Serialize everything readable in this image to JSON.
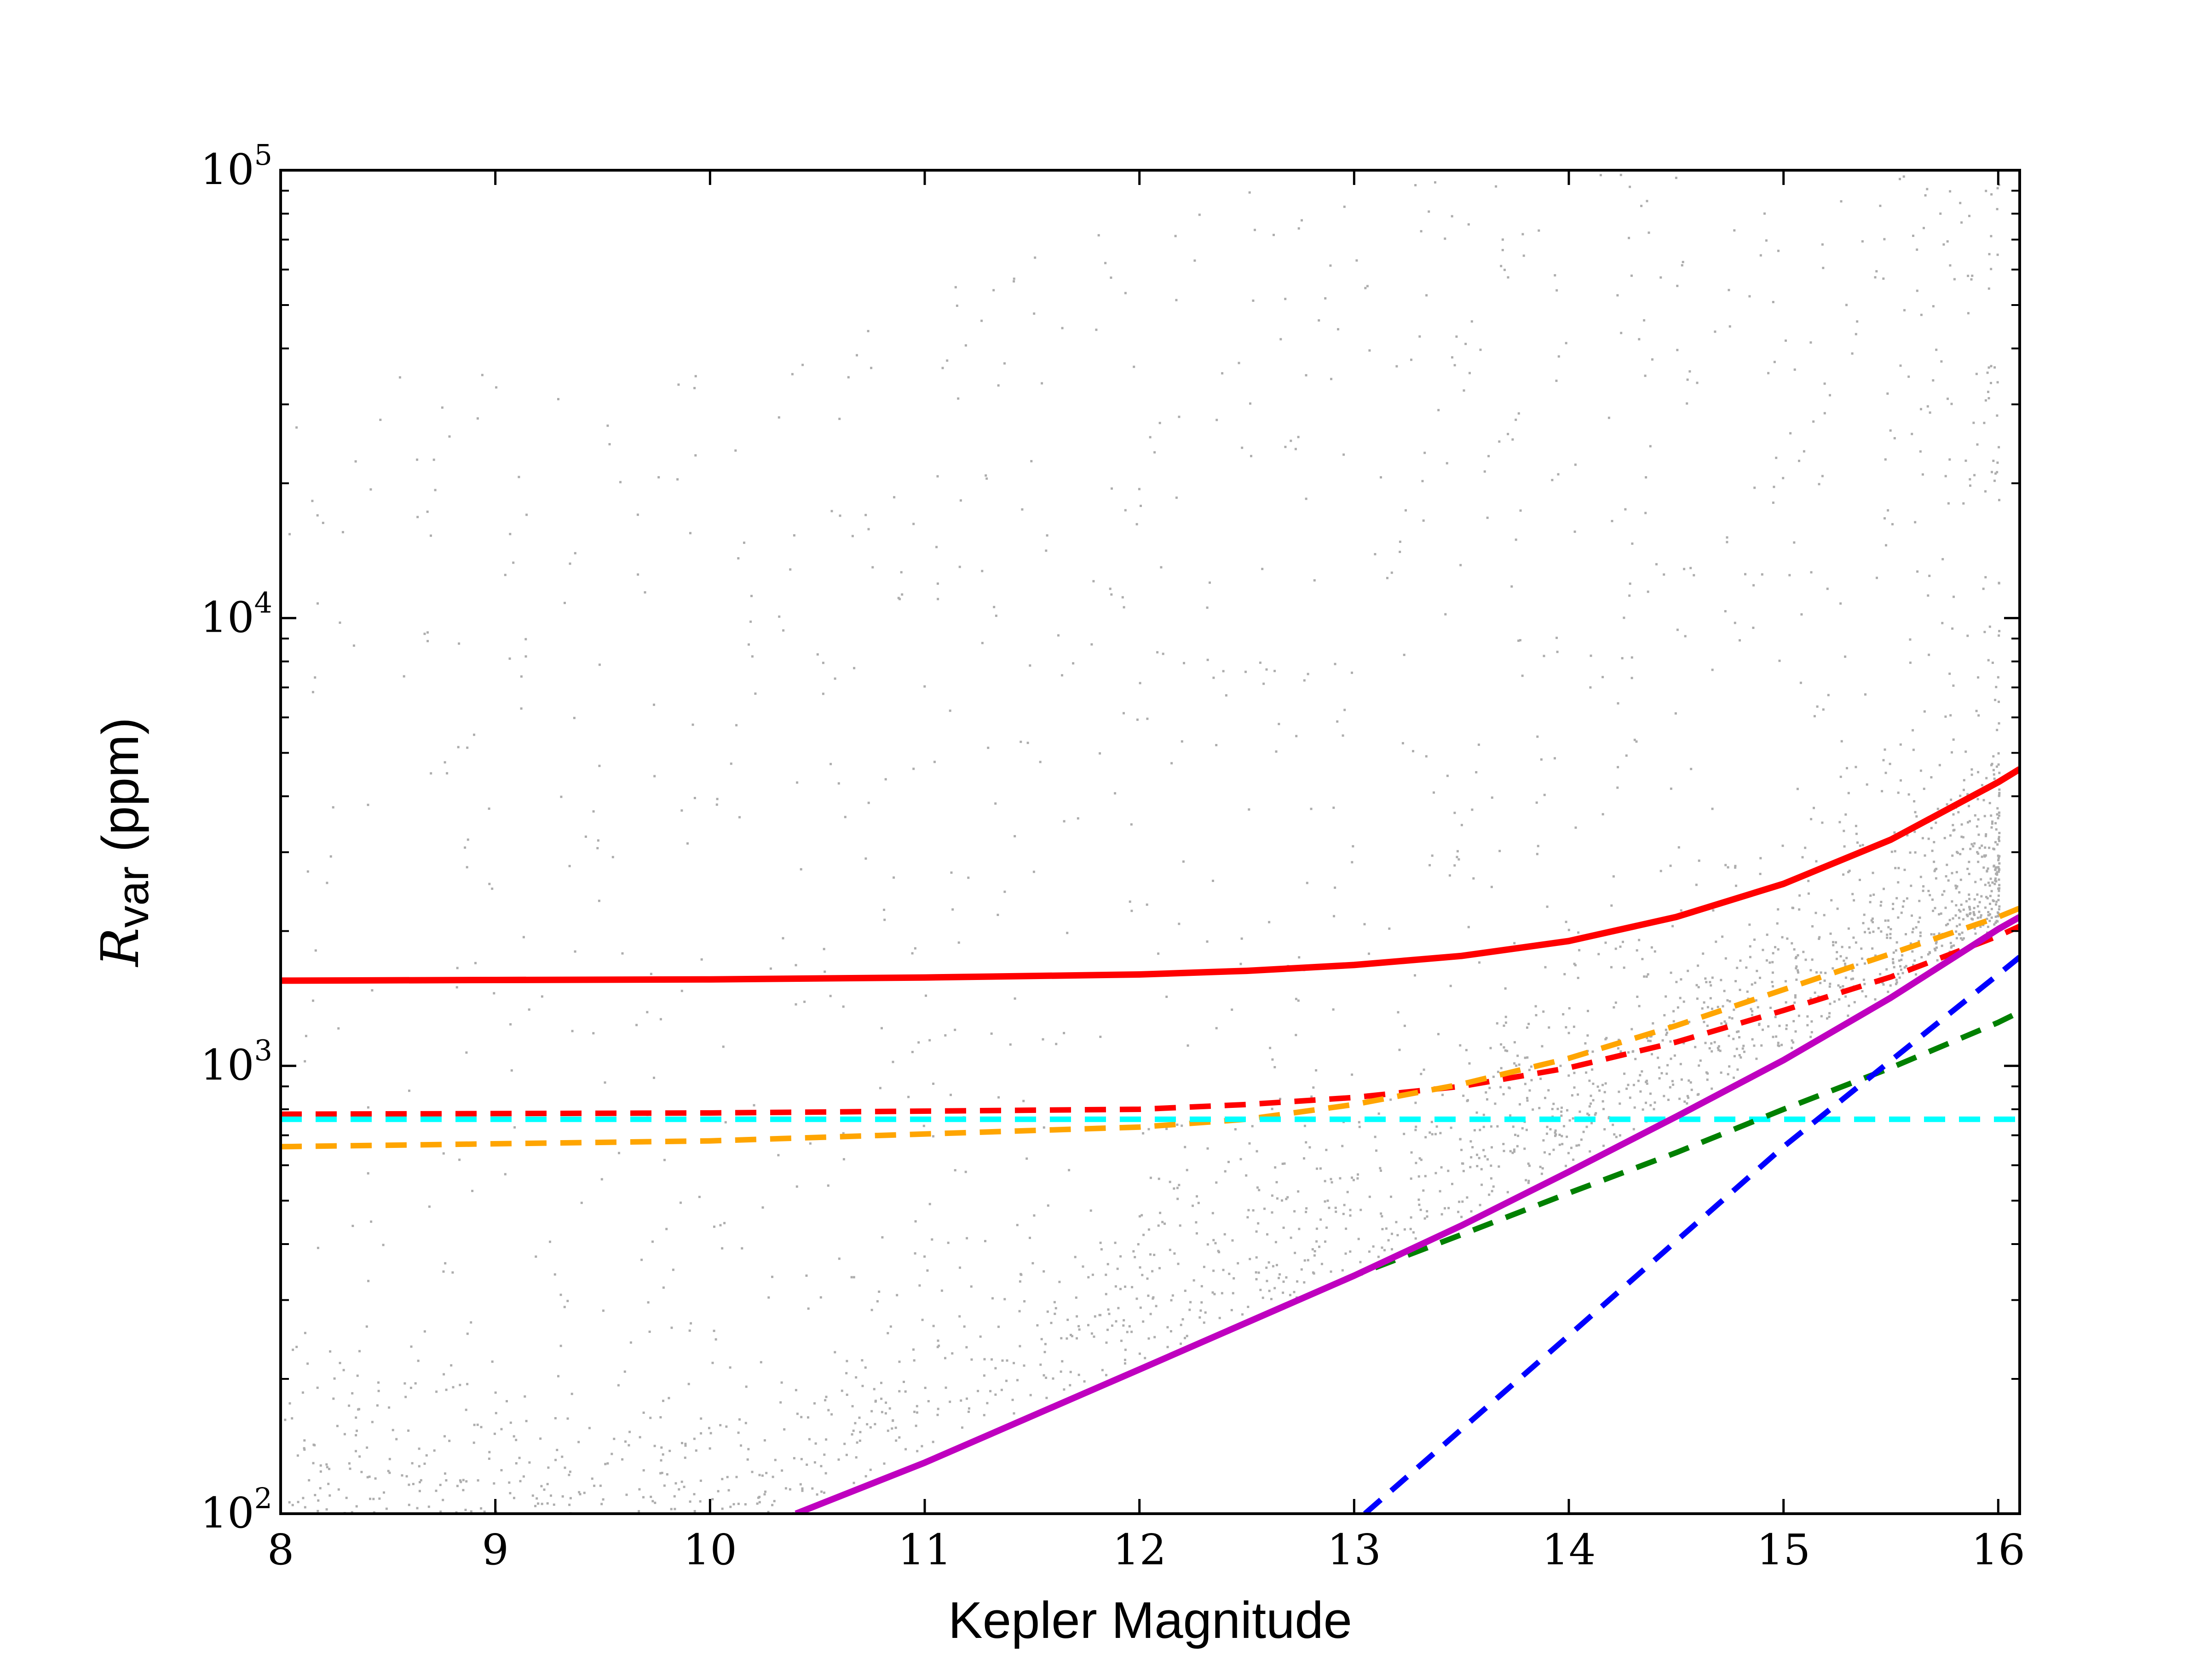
{
  "chart_data": {
    "type": "scatter",
    "xlabel": "Kepler Magnitude",
    "ylabel": {
      "symbol": "R",
      "subscript": "var",
      "unit": "(ppm)"
    },
    "xlim": [
      8,
      16.1
    ],
    "ylim": [
      100,
      100000
    ],
    "yscale": "log",
    "grid": false,
    "x_ticks": [
      "8",
      "9",
      "10",
      "11",
      "12",
      "13",
      "14",
      "15",
      "16"
    ],
    "y_ticks": [
      {
        "value": 100,
        "base": "10",
        "exp": "2"
      },
      {
        "value": 1000,
        "base": "10",
        "exp": "3"
      },
      {
        "value": 10000,
        "base": "10",
        "exp": "4"
      },
      {
        "value": 100000,
        "base": "10",
        "exp": "5"
      }
    ],
    "scatter_note": "dense cloud of grey points, denser toward faint magnitudes",
    "curves": [
      {
        "color": "#ff0000",
        "style": "solid",
        "x": [
          8,
          9,
          10,
          11,
          12,
          12.5,
          13,
          13.5,
          14,
          14.5,
          15,
          15.5,
          16,
          16.1
        ],
        "y": [
          1550,
          1555,
          1560,
          1575,
          1600,
          1630,
          1680,
          1760,
          1900,
          2150,
          2550,
          3200,
          4300,
          4600
        ]
      },
      {
        "color": "#ff0000",
        "style": "dashed",
        "x": [
          8,
          10,
          12,
          12.5,
          13,
          13.5,
          14,
          14.5,
          15,
          15.5,
          16,
          16.1
        ],
        "y": [
          780,
          785,
          800,
          820,
          850,
          900,
          990,
          1130,
          1330,
          1580,
          1950,
          2050
        ]
      },
      {
        "color": "#ffa500",
        "style": "dashed",
        "x": [
          8,
          10,
          12,
          12.5,
          13,
          13.5,
          14,
          14.5,
          15,
          15.5,
          16,
          16.1
        ],
        "y": [
          660,
          680,
          730,
          760,
          820,
          910,
          1040,
          1230,
          1480,
          1780,
          2150,
          2250
        ]
      },
      {
        "color": "#00ffff",
        "style": "dashed",
        "x": [
          8,
          16.1
        ],
        "y": [
          760,
          760
        ]
      },
      {
        "color": "#008000",
        "style": "dashed",
        "x": [
          10.4,
          11,
          12,
          13,
          13.5,
          14,
          14.5,
          15,
          15.5,
          16,
          16.1
        ],
        "y": [
          100,
          130,
          210,
          340,
          420,
          520,
          640,
          800,
          990,
          1250,
          1320
        ]
      },
      {
        "color": "#0000ff",
        "style": "dashed",
        "x": [
          13.05,
          14,
          15,
          16,
          16.1
        ],
        "y": [
          100,
          250,
          660,
          1600,
          1750
        ]
      },
      {
        "color": "#bf00bf",
        "style": "solid",
        "x": [
          10.4,
          11,
          12,
          13,
          13.5,
          14,
          14.5,
          15,
          15.5,
          16,
          16.1
        ],
        "y": [
          100,
          130,
          210,
          340,
          440,
          580,
          770,
          1030,
          1420,
          2020,
          2150
        ]
      }
    ]
  }
}
